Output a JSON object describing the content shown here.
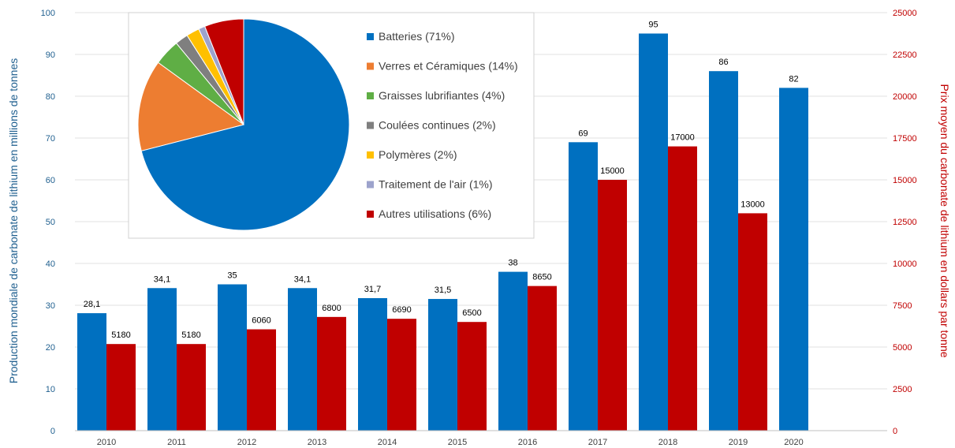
{
  "chart_data": [
    {
      "type": "bar",
      "categories": [
        "2010",
        "2011",
        "2012",
        "2013",
        "2014",
        "2015",
        "2016",
        "2017",
        "2018",
        "2019",
        "2020"
      ],
      "ylabel": "Production mondiale de  carbonate de lithium en millions de tonnes",
      "y2label": "Prix moyen du carbonate de lithium en dollars par tonne",
      "ylim": [
        0,
        100
      ],
      "y2lim": [
        0,
        25000
      ],
      "yticks": [
        0,
        10,
        20,
        30,
        40,
        50,
        60,
        70,
        80,
        90,
        100
      ],
      "y2ticks": [
        0,
        2500,
        5000,
        7500,
        10000,
        12500,
        15000,
        17500,
        20000,
        22500,
        25000
      ],
      "grid": true,
      "series": [
        {
          "axis": "left",
          "color": "#0070c0",
          "values": [
            28.1,
            34.1,
            35,
            34.1,
            31.7,
            31.5,
            38,
            69,
            95,
            86,
            82
          ],
          "labels": [
            "28,1",
            "34,1",
            "35",
            "34,1",
            "31,7",
            "31,5",
            "38",
            "69",
            "95",
            "86",
            "82"
          ]
        },
        {
          "axis": "right",
          "color": "#c00000",
          "values": [
            5180,
            5180,
            6060,
            6800,
            6690,
            6500,
            8650,
            15000,
            17000,
            13000,
            null
          ],
          "labels": [
            "5180",
            "5180",
            "6060",
            "6800",
            "6690",
            "6500",
            "8650",
            "15000",
            "17000",
            "13000",
            ""
          ]
        }
      ]
    },
    {
      "type": "pie",
      "legend_position": "right",
      "slices": [
        {
          "label": "Batteries (71%)",
          "value": 71,
          "color": "#0070c0"
        },
        {
          "label": "Verres et Céramiques (14%)",
          "value": 14,
          "color": "#ed7d31"
        },
        {
          "label": "Graisses lubrifiantes (4%)",
          "value": 4,
          "color": "#5fae45"
        },
        {
          "label": "Coulées continues (2%)",
          "value": 2,
          "color": "#7f7f7f"
        },
        {
          "label": "Polymères (2%)",
          "value": 2,
          "color": "#ffc000"
        },
        {
          "label": "Traitement de l'air (1%)",
          "value": 1,
          "color": "#9da3cc"
        },
        {
          "label": "Autres utilisations (6%)",
          "value": 6,
          "color": "#c00000"
        }
      ]
    }
  ]
}
